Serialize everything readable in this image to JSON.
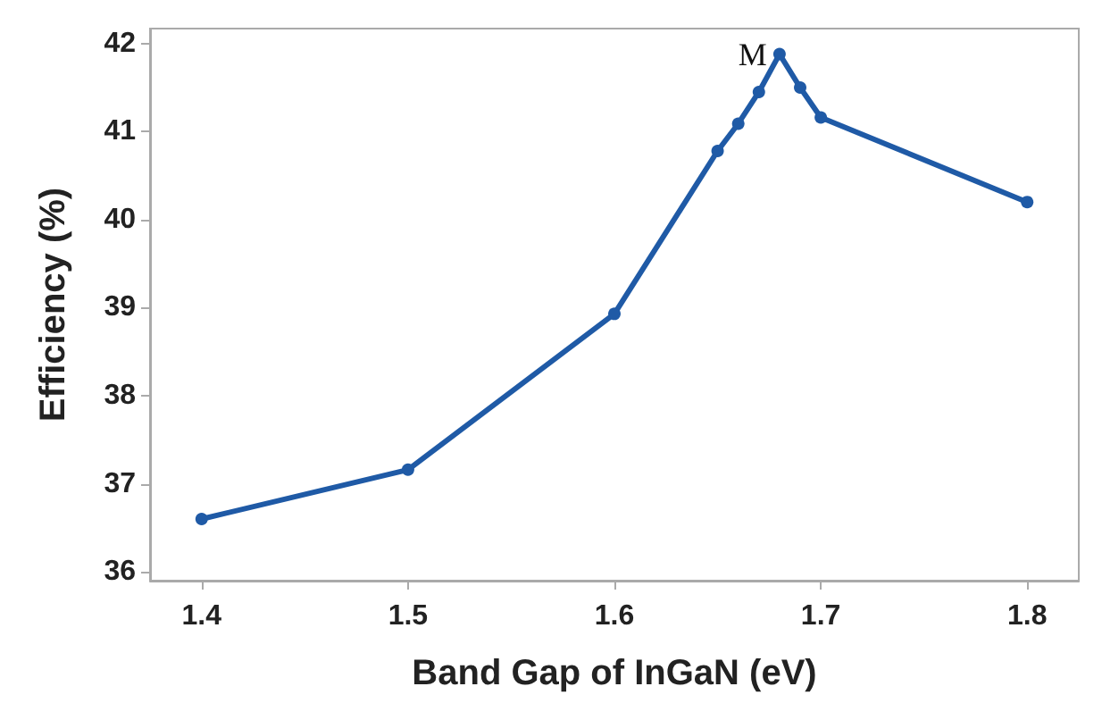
{
  "chart_data": {
    "type": "line",
    "xlabel": "Band Gap of InGaN (eV)",
    "ylabel": "Efficiency (%)",
    "x": [
      1.4,
      1.5,
      1.6,
      1.65,
      1.66,
      1.67,
      1.68,
      1.69,
      1.7,
      1.8
    ],
    "series": [
      {
        "color": "#1f5aa6",
        "values": [
          36.6,
          37.16,
          38.93,
          40.78,
          41.09,
          41.45,
          41.88,
          41.5,
          41.16,
          40.2
        ]
      }
    ],
    "xlim": [
      1.375,
      1.825
    ],
    "xticks": [
      1.4,
      1.5,
      1.6,
      1.7,
      1.8
    ],
    "ylim": [
      35.9,
      42.17
    ],
    "yticks": [
      36,
      37,
      38,
      39,
      40,
      41,
      42
    ],
    "grid": false,
    "marker": "circle",
    "line_style": "solid",
    "annotations": [
      {
        "text": "M",
        "x": 1.68,
        "y": 41.88
      }
    ]
  }
}
